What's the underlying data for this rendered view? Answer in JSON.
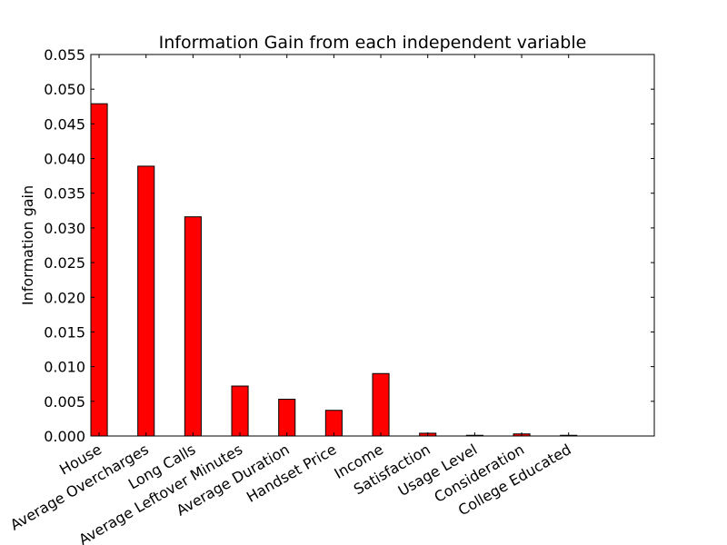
{
  "chart_data": {
    "type": "bar",
    "title": "Information Gain from each independent variable",
    "xlabel": "",
    "ylabel": "Information gain",
    "categories": [
      "House",
      "Average Overcharges",
      "Long Calls",
      "Average Leftover Minutes",
      "Average Duration",
      "Handset Price",
      "Income",
      "Satisfaction",
      "Usage Level",
      "Consideration",
      "College Educated"
    ],
    "values": [
      0.0479,
      0.0389,
      0.0316,
      0.0072,
      0.0053,
      0.0037,
      0.009,
      0.0004,
      0.0001,
      0.0003,
      0.0001
    ],
    "ylim": [
      0,
      0.055
    ],
    "yticks": [
      "0.000",
      "0.005",
      "0.010",
      "0.015",
      "0.020",
      "0.025",
      "0.030",
      "0.035",
      "0.040",
      "0.045",
      "0.050",
      "0.055"
    ],
    "grid": false,
    "bar_color": "#ff0000",
    "edge_color": "#000000"
  }
}
